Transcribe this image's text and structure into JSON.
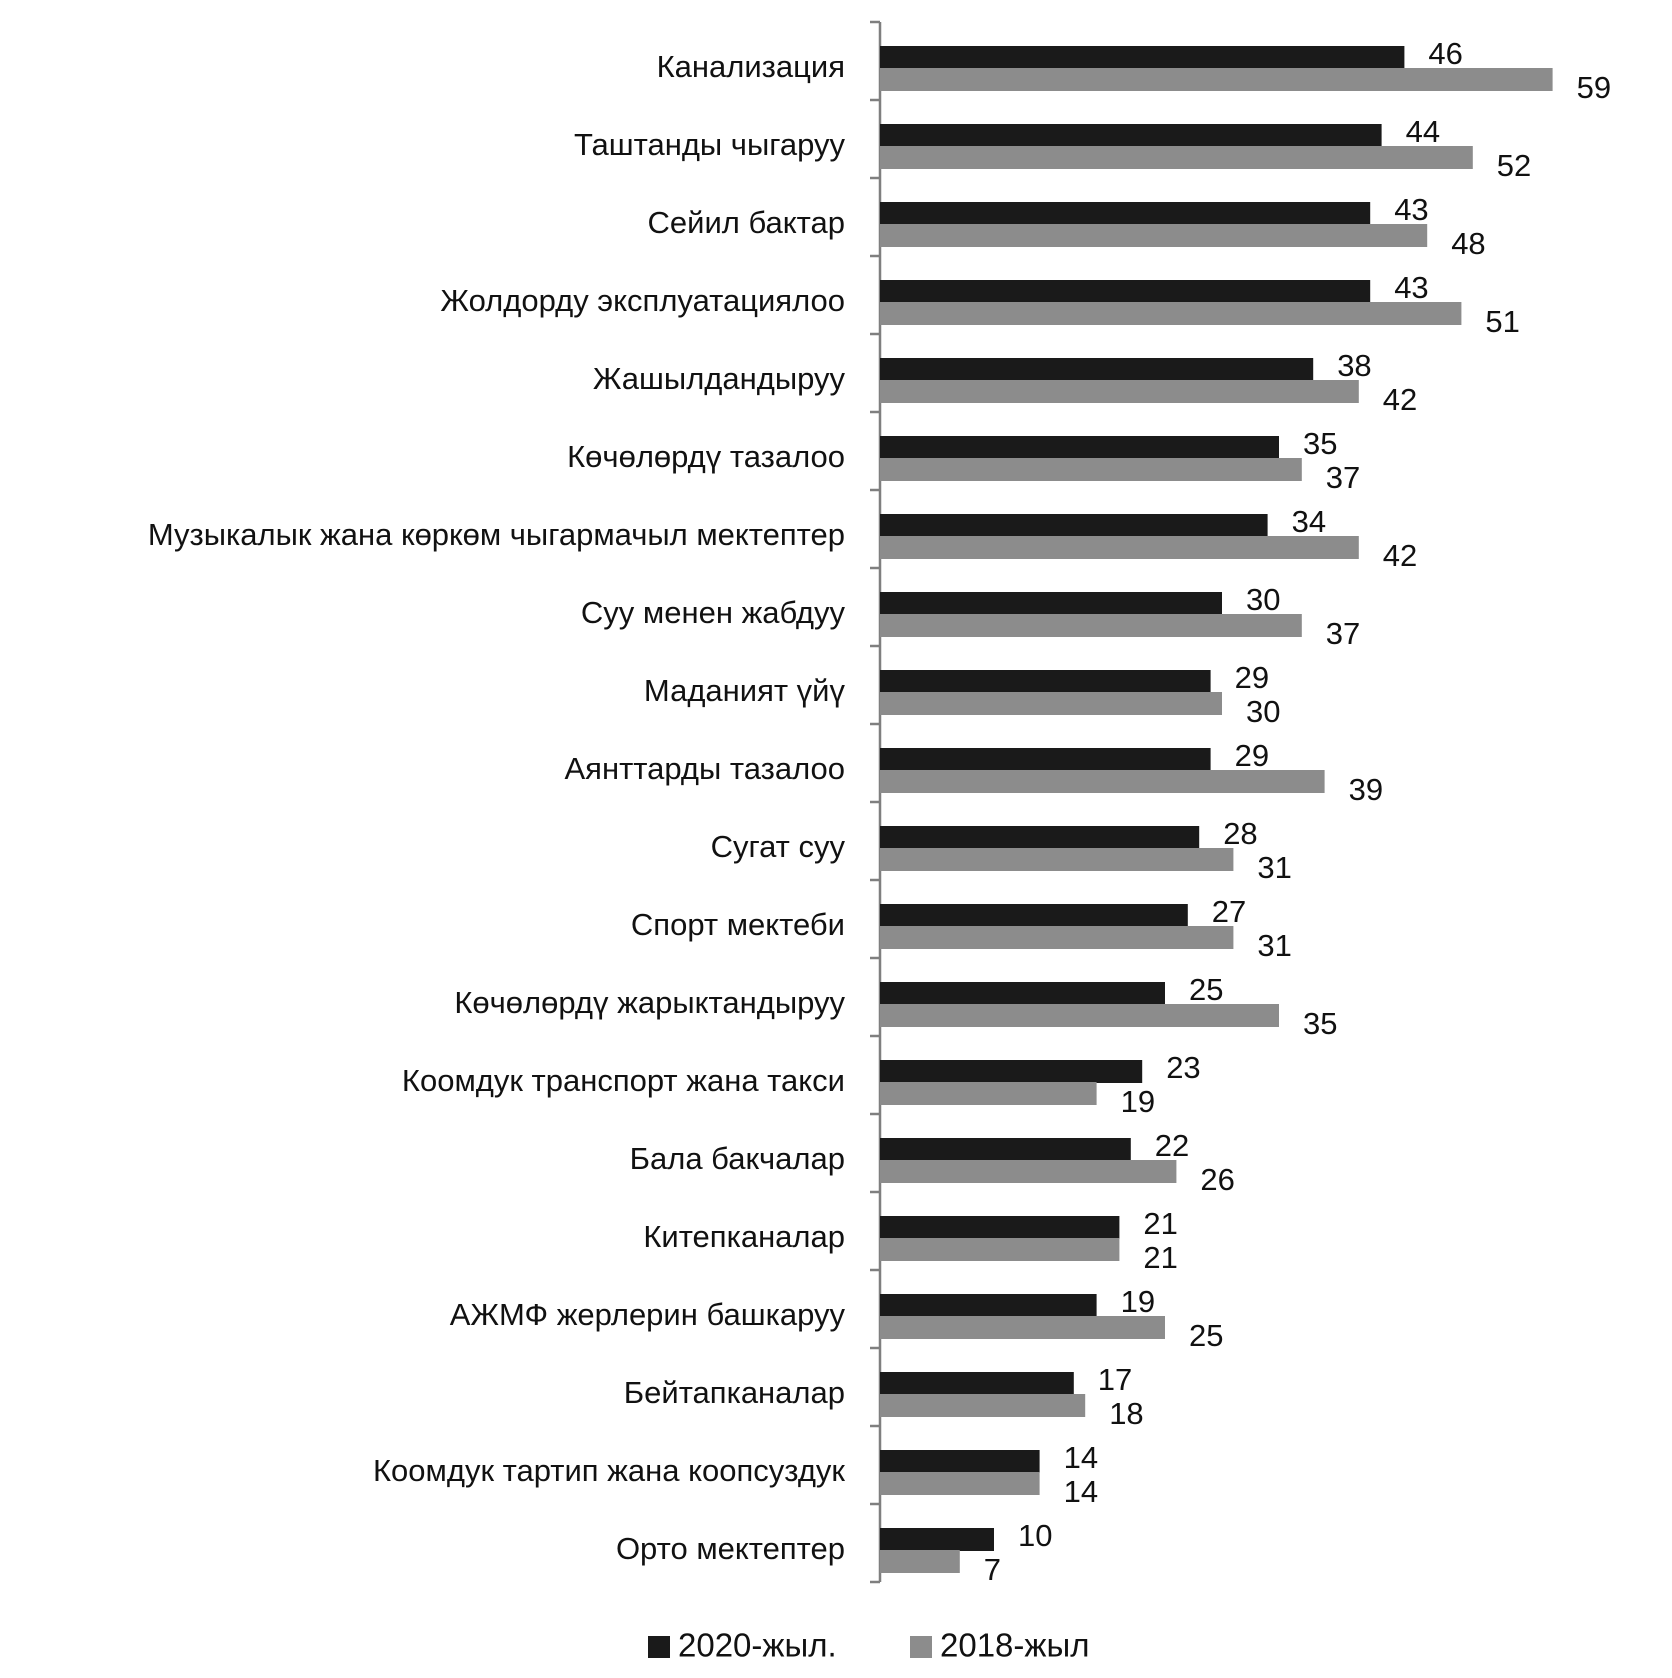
{
  "chart_data": {
    "type": "bar",
    "orientation": "horizontal",
    "categories": [
      "Канализация",
      "Таштанды чыгаруу",
      "Сейил бактар",
      "Жолдорду эксплуатациялоо",
      "Жашылдандыруу",
      "Көчөлөрдү тазалоо",
      "Музыкалык жана көркөм чыгармачыл мектептер",
      "Суу менен жабдуу",
      "Маданият үйү",
      "Аянттарды тазалоо",
      "Сугат суу",
      "Спорт мектеби",
      "Көчөлөрдү жарыктандыруу",
      "Коомдук транспорт жана такси",
      "Бала бакчалар",
      "Китепканалар",
      "АЖМФ жерлерин башкаруу",
      "Бейтапканалар",
      "Коомдук тартип жана коопсуздук",
      "Орто мектептер"
    ],
    "series": [
      {
        "name": "2020-жыл.",
        "color": "#1a1a1a",
        "values": [
          46,
          44,
          43,
          43,
          38,
          35,
          34,
          30,
          29,
          29,
          28,
          27,
          25,
          23,
          22,
          21,
          19,
          17,
          14,
          10
        ]
      },
      {
        "name": "2018-жыл",
        "color": "#8c8c8c",
        "values": [
          59,
          52,
          48,
          51,
          42,
          37,
          42,
          37,
          30,
          39,
          31,
          31,
          35,
          19,
          26,
          21,
          25,
          18,
          14,
          7
        ]
      }
    ],
    "xlim": [
      0,
      70
    ],
    "grid": false,
    "legend_position": "bottom"
  }
}
